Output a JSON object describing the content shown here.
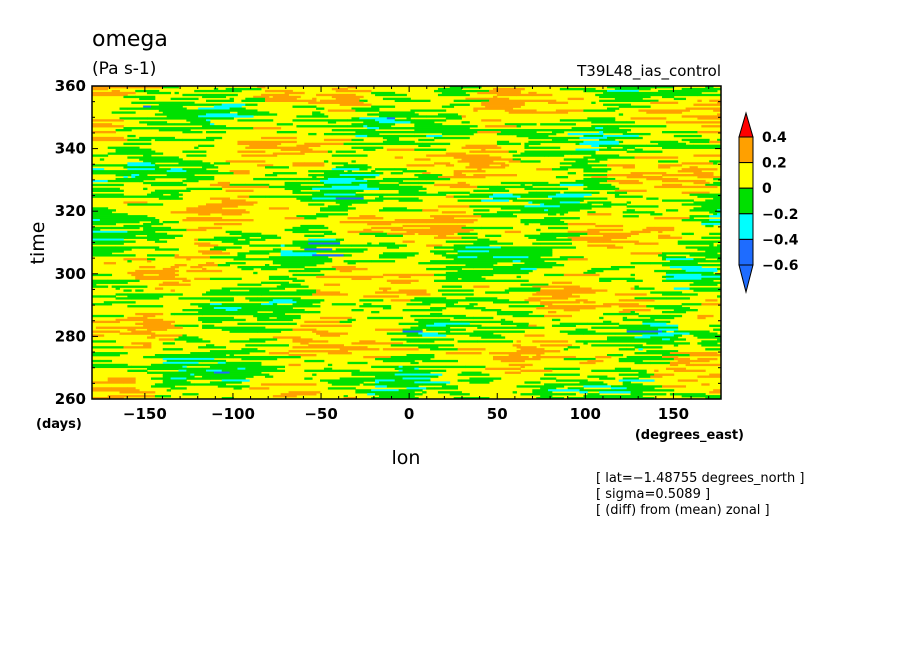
{
  "chart_data": {
    "type": "heatmap",
    "title": "omega",
    "units": "(Pa s-1)",
    "run_label": "T39L48_ias_control",
    "xlabel": "lon",
    "ylabel": "time",
    "x_units": "(degrees_east)",
    "y_units": "(days)",
    "xlim": [
      -180,
      177
    ],
    "ylim": [
      260,
      360
    ],
    "x_ticks": [
      -150,
      -100,
      -50,
      0,
      50,
      100,
      150
    ],
    "x_tick_labels": [
      "−150",
      "−100",
      "−50",
      "0",
      "50",
      "100",
      "150"
    ],
    "y_ticks": [
      260,
      280,
      300,
      320,
      340,
      360
    ],
    "y_tick_labels": [
      "260",
      "280",
      "300",
      "320",
      "340",
      "360"
    ],
    "contour_levels": [
      -0.6,
      -0.4,
      -0.2,
      0,
      0.2,
      0.4
    ],
    "colorbar_labels": [
      "0.4",
      "0.2",
      "0",
      "−0.2",
      "−0.4",
      "−0.6"
    ],
    "colors": [
      "#1e6cff",
      "#00ffff",
      "#00e000",
      "#ffff00",
      "#ffa000",
      "#ff0000",
      "#ee0000"
    ],
    "dominant_bands": [
      "0 to 0.2",
      "-0.2 to 0"
    ],
    "annotations": [
      "[ lat=−1.48755 degrees_north ]",
      "[ sigma=0.5089 ]",
      "[ (diff) from (mean) zonal ]"
    ]
  }
}
